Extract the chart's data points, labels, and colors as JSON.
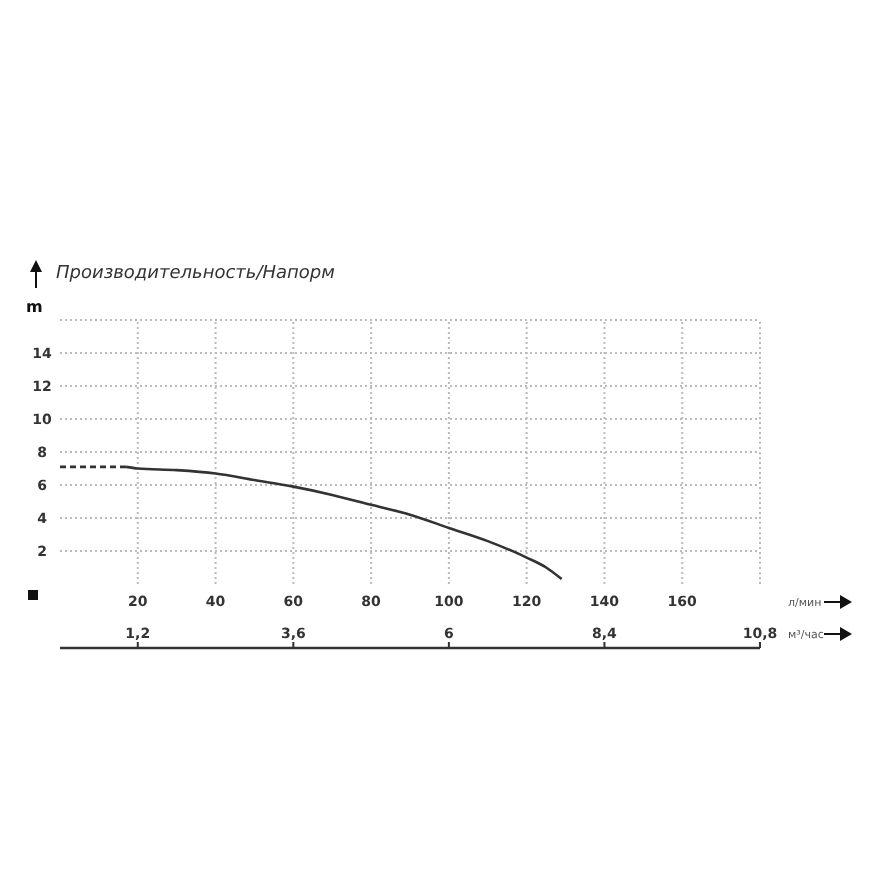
{
  "chart_data": {
    "type": "line",
    "title": "Производительность/Напорм",
    "xlabel": "л/мин",
    "ylabel": "m",
    "x2label": "м³/час",
    "xlim": [
      0,
      180
    ],
    "xticks": [
      20,
      40,
      60,
      80,
      100,
      120,
      140,
      160,
      {
        "value": 180,
        "label": null
      }
    ],
    "ylim": [
      0,
      16
    ],
    "yticks": [
      2,
      4,
      6,
      8,
      10,
      12,
      14,
      {
        "value": 16,
        "label": null
      }
    ],
    "x2lim": [
      0,
      10.8
    ],
    "x2ticks": [
      {
        "value": 1.2,
        "label": "1,2"
      },
      {
        "value": 3.6,
        "label": "3,6"
      },
      {
        "value": 6,
        "label": "6"
      },
      {
        "value": 8.4,
        "label": "8,4"
      },
      {
        "value": 10.8,
        "label": "10,8"
      }
    ],
    "grid": true,
    "series": [
      {
        "color": "#333333",
        "line_style": "dashed",
        "x": [
          0,
          17
        ],
        "values": [
          7.1,
          7.1
        ]
      },
      {
        "color": "#333333",
        "line_style": "solid",
        "x": [
          17,
          20,
          30,
          40,
          50,
          60,
          70,
          80,
          90,
          100,
          110,
          120,
          125,
          129
        ],
        "values": [
          7.1,
          7.0,
          6.9,
          6.7,
          6.3,
          5.9,
          5.4,
          4.8,
          4.2,
          3.4,
          2.6,
          1.6,
          1.0,
          0.3
        ]
      }
    ]
  }
}
